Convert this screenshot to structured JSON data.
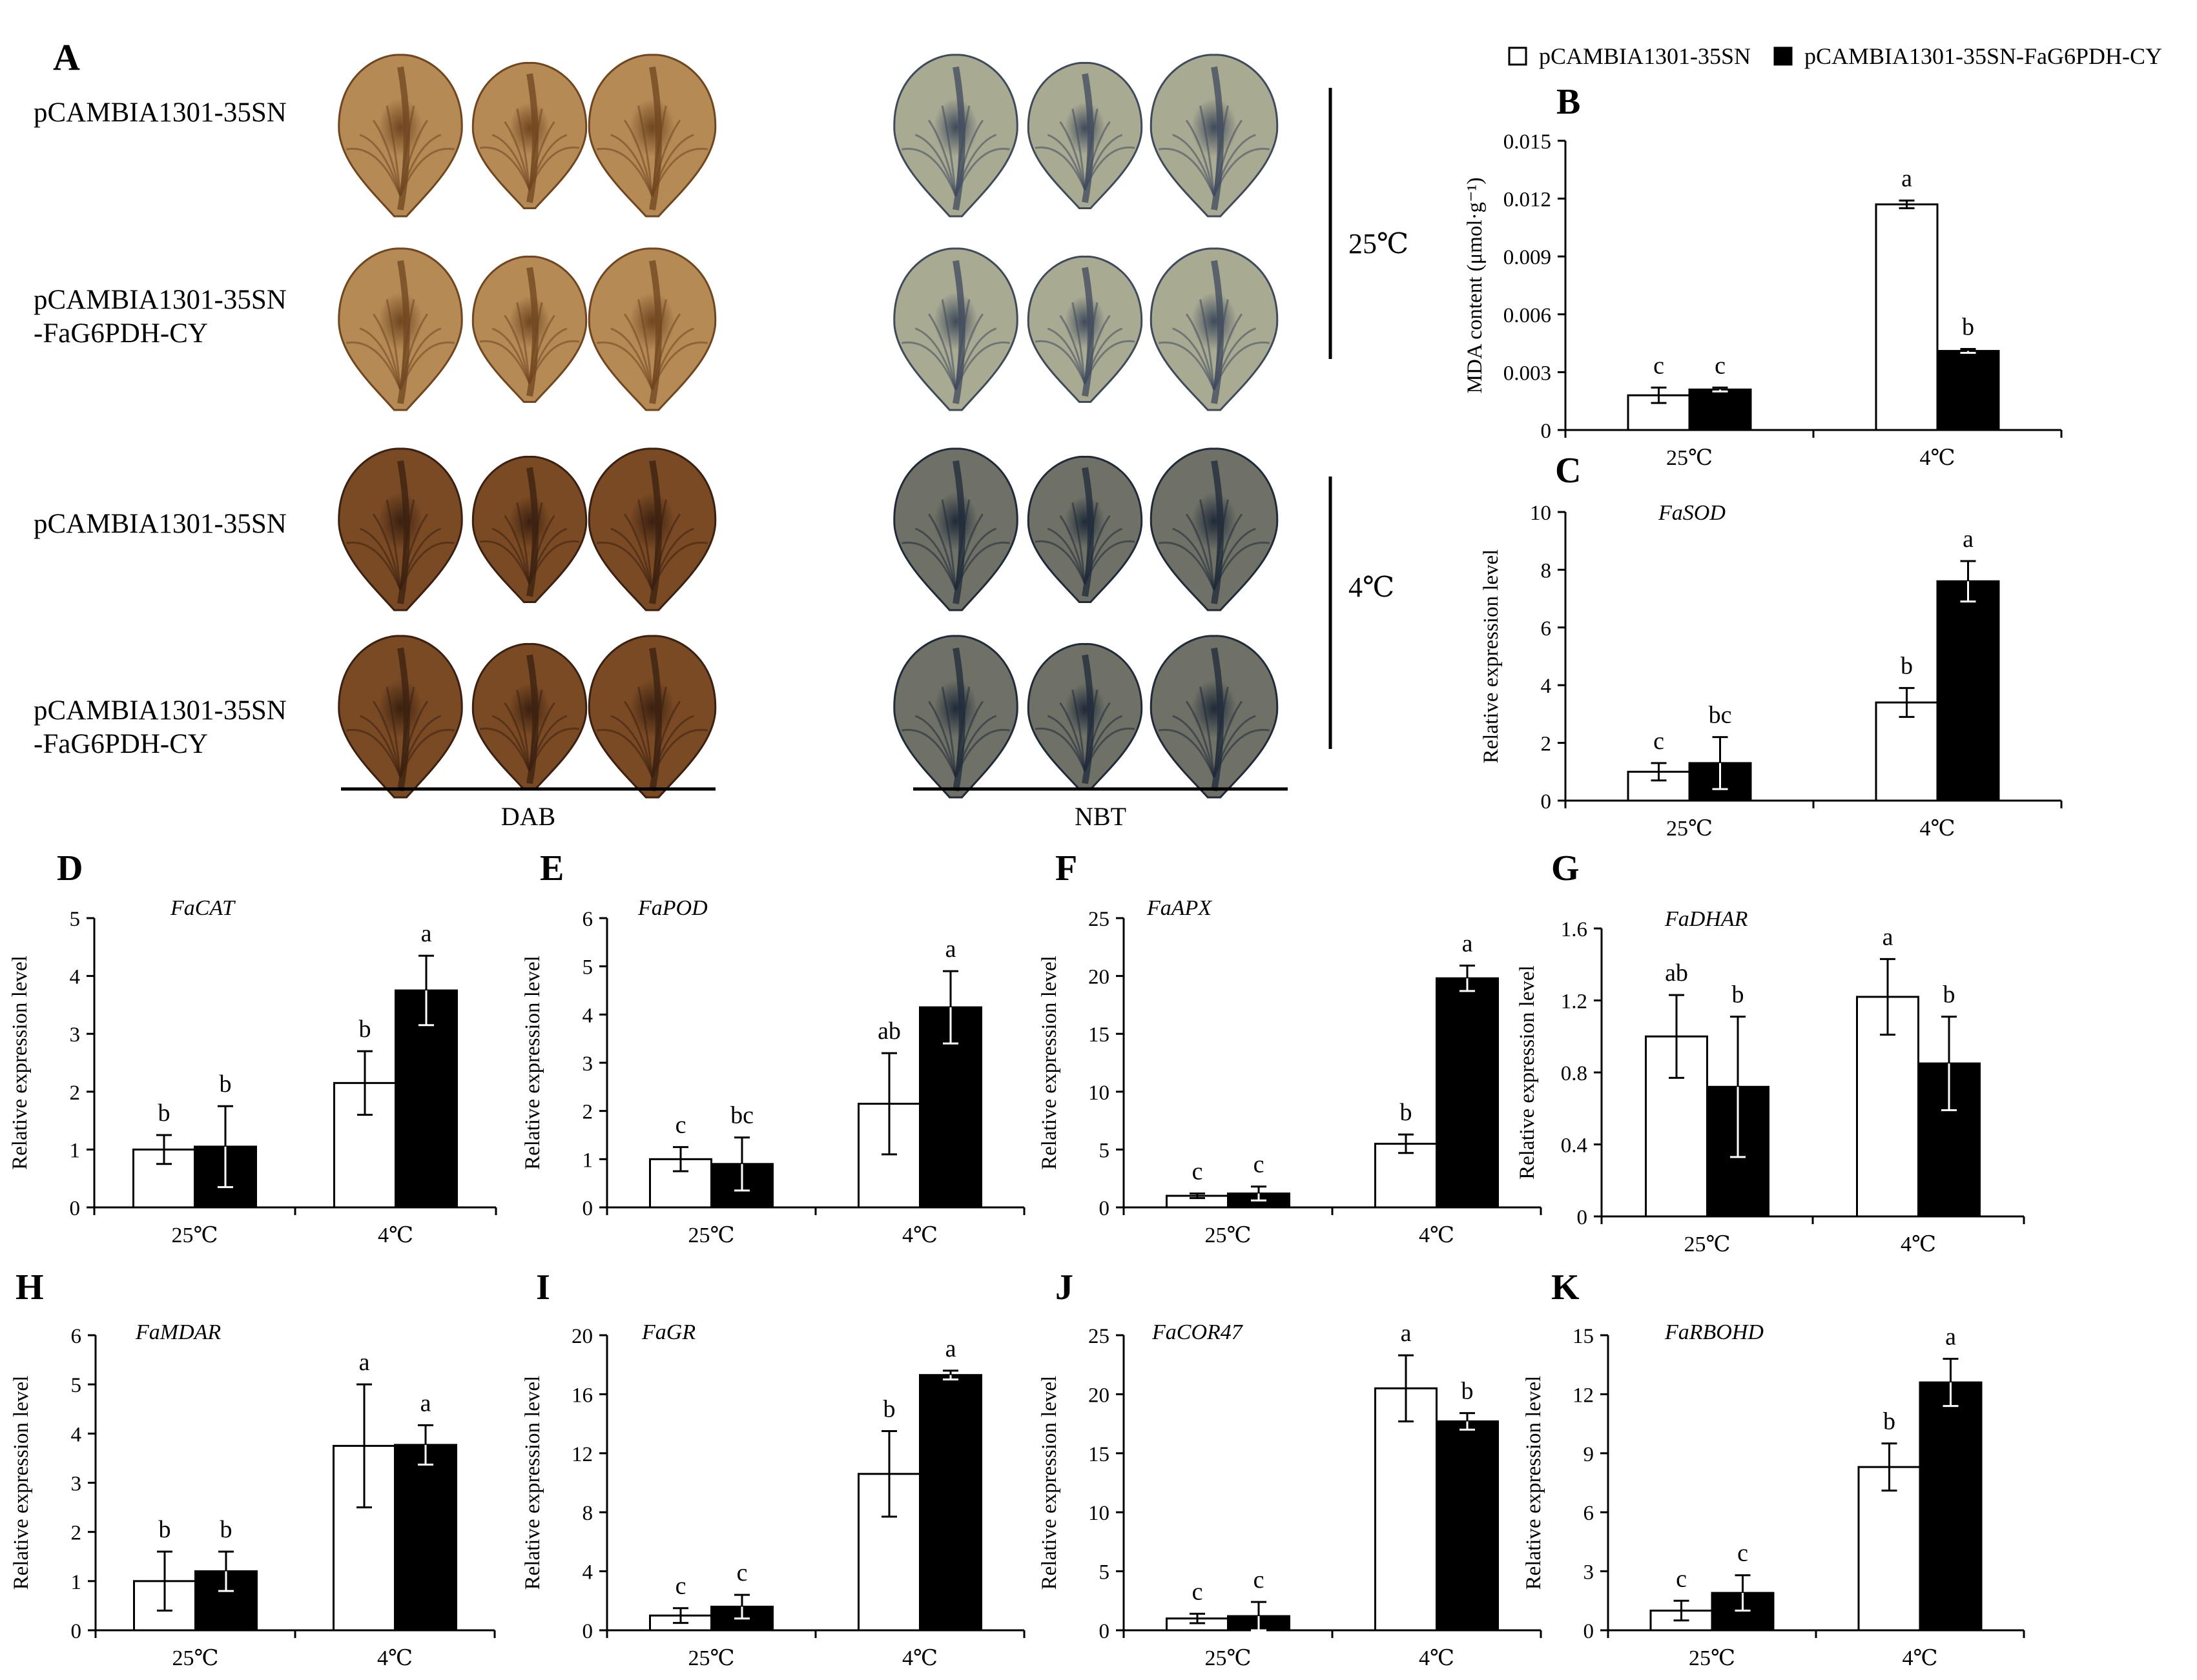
{
  "figure": {
    "panel_a": {
      "letter": "A",
      "row_labels": [
        [
          "pCAMBIA1301-35SN"
        ],
        [
          "pCAMBIA1301-35SN",
          "-FaG6PDH-CY"
        ],
        [
          "pCAMBIA1301-35SN"
        ],
        [
          "pCAMBIA1301-35SN",
          "-FaG6PDH-CY"
        ]
      ],
      "stain_labels": [
        "DAB",
        "NBT"
      ],
      "temp_labels": [
        "25℃",
        "4℃"
      ],
      "colors": {
        "dab_light": "#b58a55",
        "dab_light_vein": "#6f4620",
        "dab_dark": "#7a4a24",
        "dab_dark_vein": "#3a2010",
        "nbt_light": "#a9aa92",
        "nbt_light_vein": "#3f4a5c",
        "nbt_dark": "#6f7166",
        "nbt_dark_vein": "#1f2a3a"
      }
    },
    "legend": {
      "items": [
        {
          "label": "pCAMBIA1301-35SN",
          "color": "#ffffff"
        },
        {
          "label": "pCAMBIA1301-35SN-FaG6PDH-CY",
          "color": "#000000"
        }
      ]
    }
  },
  "chart_data": [
    {
      "id": "B",
      "type": "bar",
      "letter": "B",
      "title": "",
      "ylabel": "MDA content (μmol·g⁻¹)",
      "categories": [
        "25℃",
        "4℃"
      ],
      "ylim": [
        0,
        0.015
      ],
      "ticks": [
        0,
        0.003,
        0.006,
        0.009,
        0.012,
        0.015
      ],
      "tick_labels": [
        "0",
        "0.003",
        "0.006",
        "0.009",
        "0.012",
        "0.015"
      ],
      "series": [
        {
          "name": "pCAMBIA1301-35SN",
          "color": "#ffffff",
          "values": [
            0.0018,
            0.0117
          ],
          "errors": [
            0.0004,
            0.0002
          ],
          "letters": [
            "c",
            "a"
          ]
        },
        {
          "name": "pCAMBIA1301-35SN-FaG6PDH-CY",
          "color": "#000000",
          "values": [
            0.0021,
            0.0041
          ],
          "errors": [
            0.0001,
            0.0001
          ],
          "letters": [
            "c",
            "b"
          ]
        }
      ]
    },
    {
      "id": "C",
      "type": "bar",
      "letter": "C",
      "title": "FaSOD",
      "ylabel": "Relative expression level",
      "categories": [
        "25℃",
        "4℃"
      ],
      "ylim": [
        0,
        10
      ],
      "ticks": [
        0,
        2,
        4,
        6,
        8,
        10
      ],
      "tick_labels": [
        "0",
        "2",
        "4",
        "6",
        "8",
        "10"
      ],
      "series": [
        {
          "name": "pCAMBIA1301-35SN",
          "color": "#ffffff",
          "values": [
            1.0,
            3.4
          ],
          "errors": [
            0.3,
            0.5
          ],
          "letters": [
            "c",
            "b"
          ]
        },
        {
          "name": "pCAMBIA1301-35SN-FaG6PDH-CY",
          "color": "#000000",
          "values": [
            1.3,
            7.6
          ],
          "errors": [
            0.9,
            0.7
          ],
          "letters": [
            "bc",
            "a"
          ]
        }
      ]
    },
    {
      "id": "D",
      "type": "bar",
      "letter": "D",
      "title": "FaCAT",
      "ylabel": "Relative expression level",
      "categories": [
        "25℃",
        "4℃"
      ],
      "ylim": [
        0,
        5
      ],
      "ticks": [
        0,
        1,
        2,
        3,
        4,
        5
      ],
      "tick_labels": [
        "0",
        "1",
        "2",
        "3",
        "4",
        "5"
      ],
      "series": [
        {
          "name": "pCAMBIA1301-35SN",
          "color": "#ffffff",
          "values": [
            1.0,
            2.15
          ],
          "errors": [
            0.25,
            0.55
          ],
          "letters": [
            "b",
            "b"
          ]
        },
        {
          "name": "pCAMBIA1301-35SN-FaG6PDH-CY",
          "color": "#000000",
          "values": [
            1.05,
            3.75
          ],
          "errors": [
            0.7,
            0.6
          ],
          "letters": [
            "b",
            "a"
          ]
        }
      ]
    },
    {
      "id": "E",
      "type": "bar",
      "letter": "E",
      "title": "FaPOD",
      "ylabel": "Relative expression level",
      "categories": [
        "25℃",
        "4℃"
      ],
      "ylim": [
        0,
        6
      ],
      "ticks": [
        0,
        1,
        2,
        3,
        4,
        5,
        6
      ],
      "tick_labels": [
        "0",
        "1",
        "2",
        "3",
        "4",
        "5",
        "6"
      ],
      "series": [
        {
          "name": "pCAMBIA1301-35SN",
          "color": "#ffffff",
          "values": [
            1.0,
            2.15
          ],
          "errors": [
            0.25,
            1.05
          ],
          "letters": [
            "c",
            "ab"
          ]
        },
        {
          "name": "pCAMBIA1301-35SN-FaG6PDH-CY",
          "color": "#000000",
          "values": [
            0.9,
            4.15
          ],
          "errors": [
            0.55,
            0.75
          ],
          "letters": [
            "bc",
            "a"
          ]
        }
      ]
    },
    {
      "id": "F",
      "type": "bar",
      "letter": "F",
      "title": "FaAPX",
      "ylabel": "Relative expression level",
      "categories": [
        "25℃",
        "4℃"
      ],
      "ylim": [
        0,
        25
      ],
      "ticks": [
        0,
        5,
        10,
        15,
        20,
        25
      ],
      "tick_labels": [
        "0",
        "5",
        "10",
        "15",
        "20",
        "25"
      ],
      "series": [
        {
          "name": "pCAMBIA1301-35SN",
          "color": "#ffffff",
          "values": [
            1.0,
            5.5
          ],
          "errors": [
            0.2,
            0.8
          ],
          "letters": [
            "c",
            "b"
          ]
        },
        {
          "name": "pCAMBIA1301-35SN-FaG6PDH-CY",
          "color": "#000000",
          "values": [
            1.2,
            19.8
          ],
          "errors": [
            0.6,
            1.1
          ],
          "letters": [
            "c",
            "a"
          ]
        }
      ]
    },
    {
      "id": "G",
      "type": "bar",
      "letter": "G",
      "title": "FaDHAR",
      "ylabel": "Relative expression level",
      "categories": [
        "25℃",
        "4℃"
      ],
      "ylim": [
        0,
        1.6
      ],
      "ticks": [
        0,
        0.4,
        0.8,
        1.2,
        1.6
      ],
      "tick_labels": [
        "0",
        "0.4",
        "0.8",
        "1.2",
        "1.6"
      ],
      "series": [
        {
          "name": "pCAMBIA1301-35SN",
          "color": "#ffffff",
          "values": [
            1.0,
            1.22
          ],
          "errors": [
            0.23,
            0.21
          ],
          "letters": [
            "ab",
            "a"
          ]
        },
        {
          "name": "pCAMBIA1301-35SN-FaG6PDH-CY",
          "color": "#000000",
          "values": [
            0.72,
            0.85
          ],
          "errors": [
            0.39,
            0.26
          ],
          "letters": [
            "b",
            "b"
          ]
        }
      ]
    },
    {
      "id": "H",
      "type": "bar",
      "letter": "H",
      "title": "FaMDAR",
      "ylabel": "Relative expression level",
      "categories": [
        "25℃",
        "4℃"
      ],
      "ylim": [
        0,
        6
      ],
      "ticks": [
        0,
        1,
        2,
        3,
        4,
        5,
        6
      ],
      "tick_labels": [
        "0",
        "1",
        "2",
        "3",
        "4",
        "5",
        "6"
      ],
      "series": [
        {
          "name": "pCAMBIA1301-35SN",
          "color": "#ffffff",
          "values": [
            1.0,
            3.75
          ],
          "errors": [
            0.6,
            1.25
          ],
          "letters": [
            "b",
            "a"
          ]
        },
        {
          "name": "pCAMBIA1301-35SN-FaG6PDH-CY",
          "color": "#000000",
          "values": [
            1.2,
            3.77
          ],
          "errors": [
            0.4,
            0.4
          ],
          "letters": [
            "b",
            "a"
          ]
        }
      ]
    },
    {
      "id": "I",
      "type": "bar",
      "letter": "I",
      "title": "FaGR",
      "ylabel": "Relative expression level",
      "categories": [
        "25℃",
        "4℃"
      ],
      "ylim": [
        0,
        20
      ],
      "ticks": [
        0,
        4,
        8,
        12,
        16,
        20
      ],
      "tick_labels": [
        "0",
        "4",
        "8",
        "12",
        "16",
        "20"
      ],
      "series": [
        {
          "name": "pCAMBIA1301-35SN",
          "color": "#ffffff",
          "values": [
            1.0,
            10.6
          ],
          "errors": [
            0.5,
            2.9
          ],
          "letters": [
            "c",
            "b"
          ]
        },
        {
          "name": "pCAMBIA1301-35SN-FaG6PDH-CY",
          "color": "#000000",
          "values": [
            1.6,
            17.3
          ],
          "errors": [
            0.8,
            0.3
          ],
          "letters": [
            "c",
            "a"
          ]
        }
      ]
    },
    {
      "id": "J",
      "type": "bar",
      "letter": "J",
      "title": "FaCOR47",
      "ylabel": "Relative expression level",
      "categories": [
        "25℃",
        "4℃"
      ],
      "ylim": [
        0,
        25
      ],
      "ticks": [
        0,
        5,
        10,
        15,
        20,
        25
      ],
      "tick_labels": [
        "0",
        "5",
        "10",
        "15",
        "20",
        "25"
      ],
      "series": [
        {
          "name": "pCAMBIA1301-35SN",
          "color": "#ffffff",
          "values": [
            1.0,
            20.5
          ],
          "errors": [
            0.4,
            2.8
          ],
          "letters": [
            "c",
            "a"
          ]
        },
        {
          "name": "pCAMBIA1301-35SN-FaG6PDH-CY",
          "color": "#000000",
          "values": [
            1.2,
            17.7
          ],
          "errors": [
            1.2,
            0.7
          ],
          "letters": [
            "c",
            "b"
          ]
        }
      ]
    },
    {
      "id": "K",
      "type": "bar",
      "letter": "K",
      "title": "FaRBOHD",
      "ylabel": "Relative expression level",
      "categories": [
        "25℃",
        "4℃"
      ],
      "ylim": [
        0,
        15
      ],
      "ticks": [
        0,
        3,
        6,
        9,
        12,
        15
      ],
      "tick_labels": [
        "0",
        "3",
        "6",
        "9",
        "12",
        "15"
      ],
      "series": [
        {
          "name": "pCAMBIA1301-35SN",
          "color": "#ffffff",
          "values": [
            1.0,
            8.3
          ],
          "errors": [
            0.5,
            1.2
          ],
          "letters": [
            "c",
            "b"
          ]
        },
        {
          "name": "pCAMBIA1301-35SN-FaG6PDH-CY",
          "color": "#000000",
          "values": [
            1.9,
            12.6
          ],
          "errors": [
            0.9,
            1.2
          ],
          "letters": [
            "c",
            "a"
          ]
        }
      ]
    }
  ]
}
